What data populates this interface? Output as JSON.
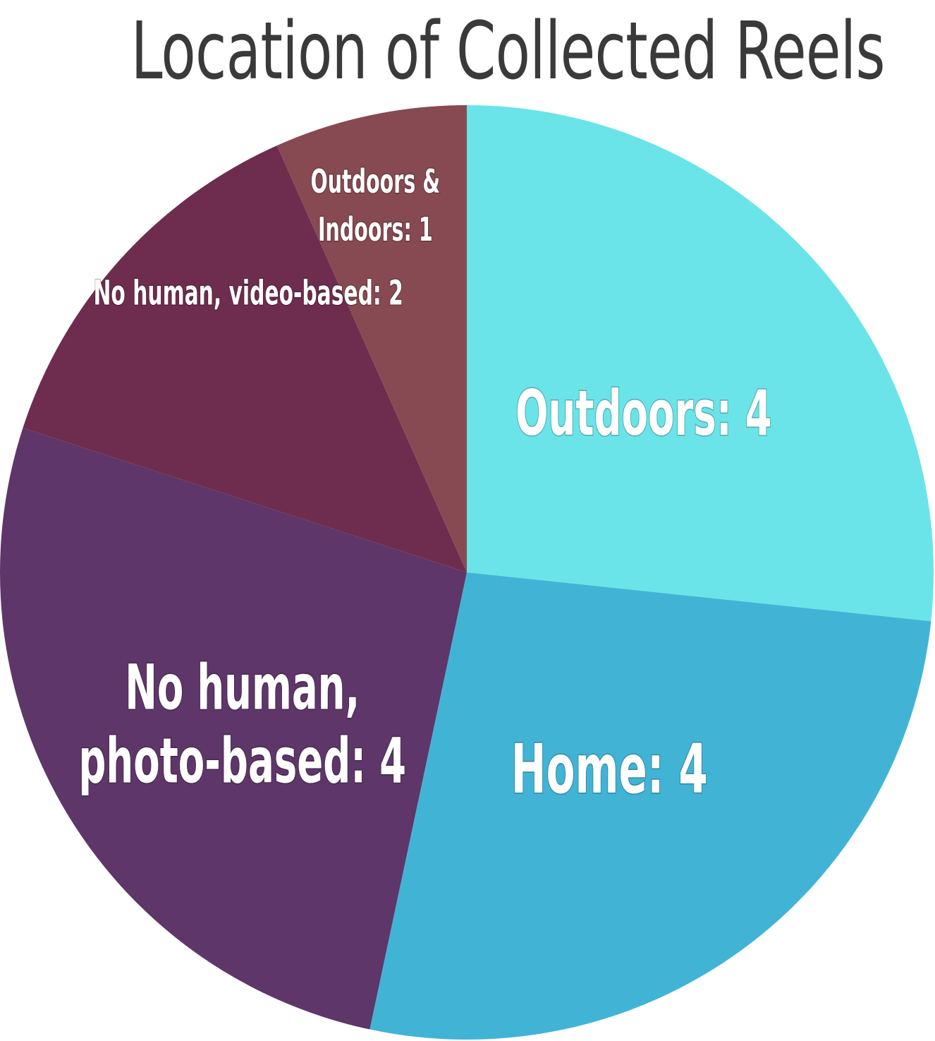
{
  "chart_data": {
    "type": "pie",
    "title": "Location of Collected Reels",
    "start_angle_deg": 0,
    "direction": "clockwise",
    "slices": [
      {
        "label": "Outdoors: 4",
        "name": "Outdoors",
        "value": 4,
        "color": "#6ae4e8",
        "label_lines": [
          "Outdoors: 4"
        ],
        "label_size": "xl"
      },
      {
        "label": "Home: 4",
        "name": "Home",
        "value": 4,
        "color": "#41b4d6",
        "label_lines": [
          "Home: 4"
        ],
        "label_size": "xl"
      },
      {
        "label": "No human, photo-based: 4",
        "name": "No human, photo-based",
        "value": 4,
        "color": "#5e3669",
        "label_lines": [
          "No human,",
          "photo-based: 4"
        ],
        "label_size": "xl"
      },
      {
        "label": "No human, video-based: 2",
        "name": "No human, video-based",
        "value": 2,
        "color": "#6e2d4e",
        "label_lines": [
          "No human, video-based: 2"
        ],
        "label_size": "sm"
      },
      {
        "label": "Outdoors & Indoors: 1",
        "name": "Outdoors & Indoors",
        "value": 1,
        "color": "#874a52",
        "label_lines": [
          "Outdoors &",
          "Indoors: 1"
        ],
        "label_size": "sm"
      }
    ]
  }
}
